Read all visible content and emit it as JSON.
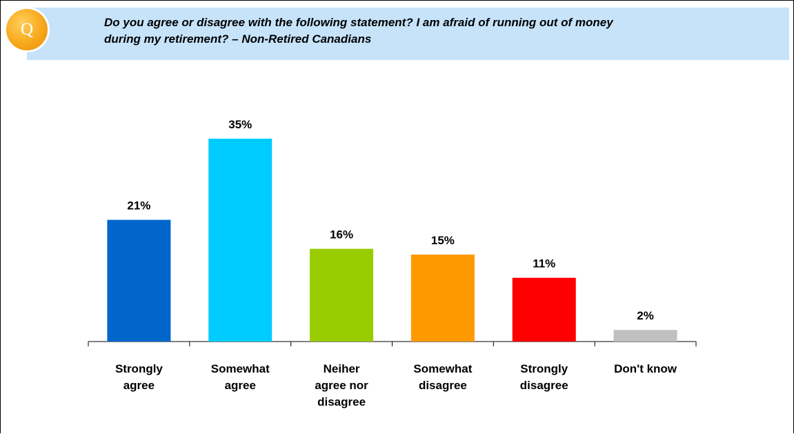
{
  "badge": {
    "letter": "Q"
  },
  "question": {
    "line1": "Do you agree or disagree with the following statement?  I am afraid of running out of money",
    "line2": "during my retirement? – Non-Retired Canadians"
  },
  "chart_data": {
    "type": "bar",
    "categories": [
      [
        "Strongly",
        "agree"
      ],
      [
        "Somewhat",
        "agree"
      ],
      [
        "Neiher",
        "agree nor",
        "disagree"
      ],
      [
        "Somewhat",
        "disagree"
      ],
      [
        "Strongly",
        "disagree"
      ],
      [
        "Don't know"
      ]
    ],
    "values": [
      21,
      35,
      16,
      15,
      11,
      2
    ],
    "value_labels": [
      "21%",
      "35%",
      "16%",
      "15%",
      "11%",
      "2%"
    ],
    "colors": [
      "#0066cc",
      "#00ccff",
      "#99cc00",
      "#ff9900",
      "#ff0000",
      "#c0c0c0"
    ],
    "ylim": [
      0,
      35
    ],
    "grid": false
  }
}
